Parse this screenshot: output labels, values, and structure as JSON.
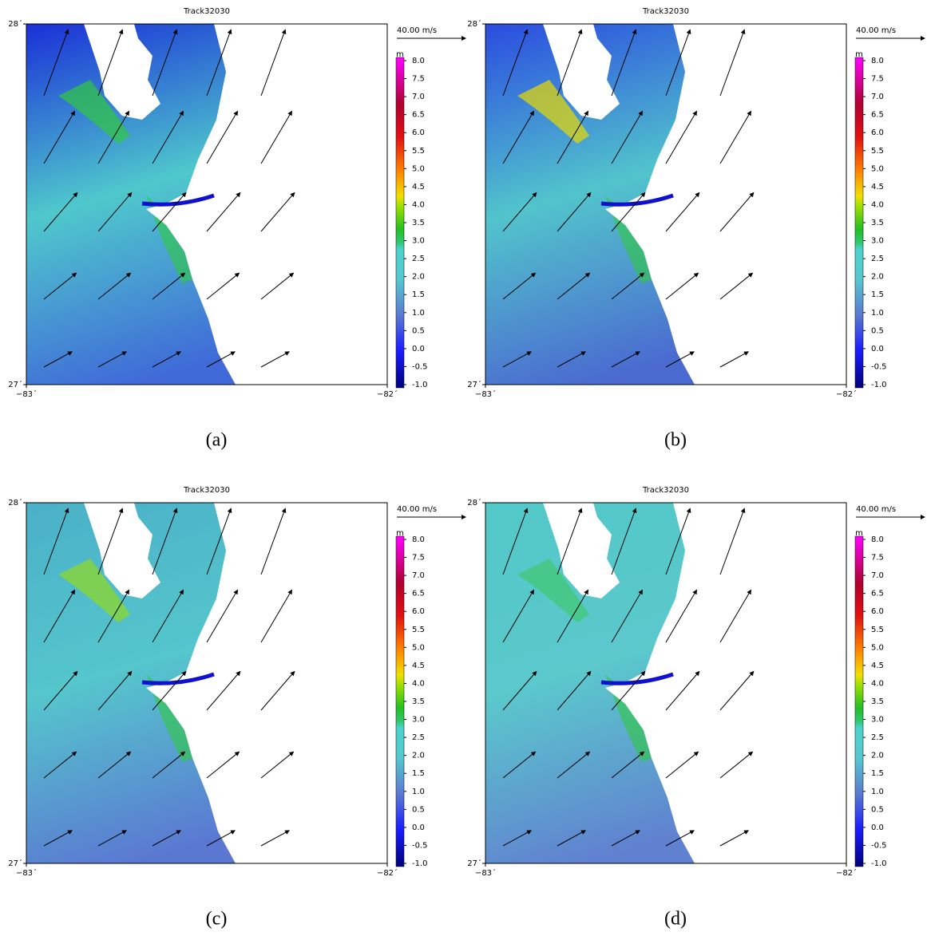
{
  "panels": [
    {
      "title": "Track32030",
      "caption": "(a)"
    },
    {
      "title": "Track32030",
      "caption": "(b)"
    },
    {
      "title": "Track32030",
      "caption": "(c)"
    },
    {
      "title": "Track32030",
      "caption": "(d)"
    }
  ],
  "axes": {
    "xlim": [
      -83,
      -82
    ],
    "xticks": [
      {
        "value": -83,
        "label": "−83´"
      },
      {
        "value": -82,
        "label": "−82´"
      }
    ],
    "ylim": [
      27,
      28
    ],
    "yticks": [
      {
        "value": 27,
        "label": "27´"
      },
      {
        "value": 28,
        "label": "28´"
      }
    ],
    "vector_scale_label": "40.00 m/s",
    "colorbar_unit": "m",
    "clim": [
      -1,
      8
    ],
    "cticks": [
      {
        "value": 8,
        "label": "8.0"
      },
      7.5,
      {
        "value": 7,
        "label": "7.0"
      },
      6.5,
      {
        "value": 6,
        "label": "6.0"
      },
      5.5,
      {
        "value": 5,
        "label": "5.0"
      },
      4.5,
      {
        "value": 4,
        "label": "4.0"
      },
      3.5,
      {
        "value": 3,
        "label": "3.0"
      },
      2.5,
      {
        "value": 2,
        "label": "2.0"
      },
      1.5,
      {
        "value": 1,
        "label": "1.0"
      },
      0.5,
      {
        "value": 0,
        "label": "0.0"
      },
      -0.5,
      {
        "value": -1,
        "label": "-1.0"
      }
    ]
  }
}
